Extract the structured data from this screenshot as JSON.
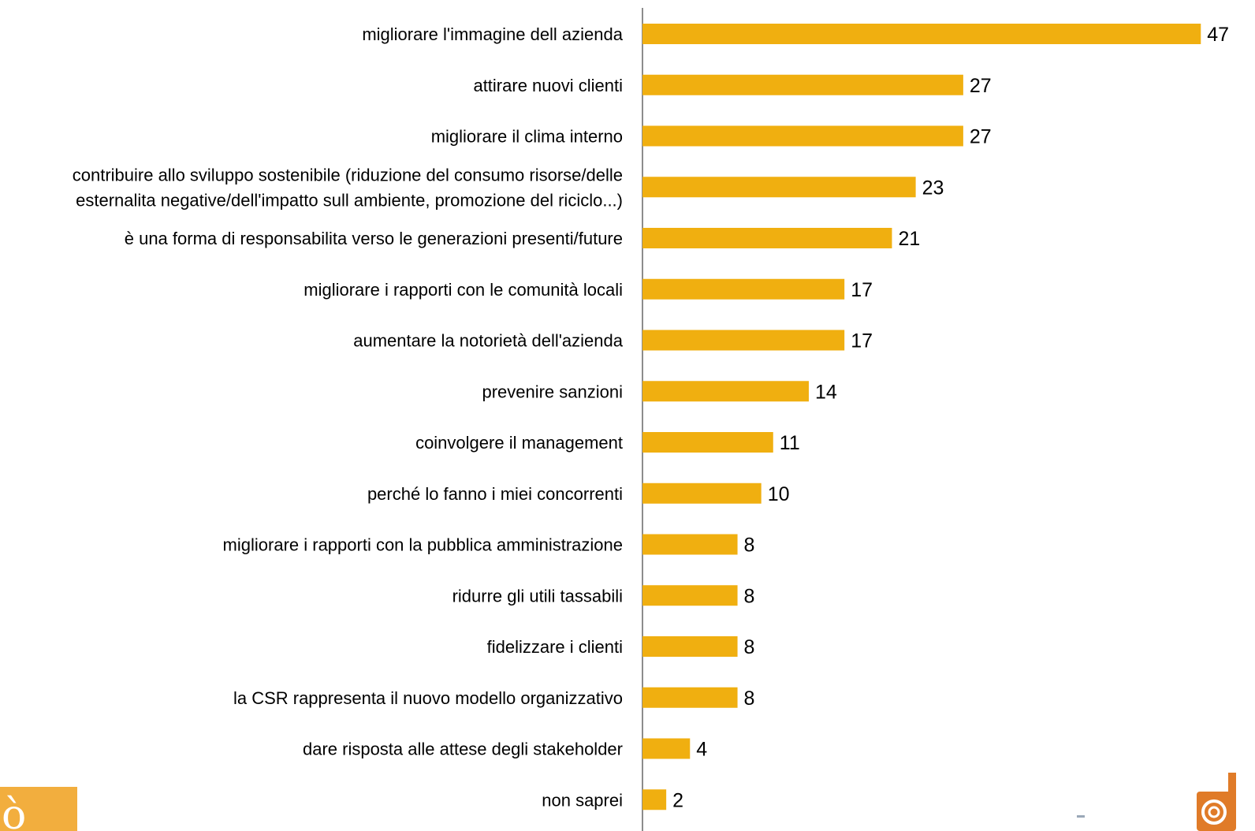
{
  "chart_data": {
    "type": "bar",
    "orientation": "horizontal",
    "categories": [
      [
        "migliorare l'immagine dell azienda"
      ],
      [
        "attirare nuovi clienti"
      ],
      [
        "migliorare il clima interno"
      ],
      [
        "contribuire allo sviluppo sostenibile (riduzione del consumo risorse/delle",
        "esternalita negative/dell'impatto sull ambiente, promozione del riciclo...)"
      ],
      [
        "è una forma di responsabilita verso le generazioni presenti/future"
      ],
      [
        "migliorare i rapporti con le comunità locali"
      ],
      [
        "aumentare la notorietà dell'azienda"
      ],
      [
        "prevenire sanzioni"
      ],
      [
        "coinvolgere il management"
      ],
      [
        "perché lo fanno i miei concorrenti"
      ],
      [
        "migliorare i rapporti con la pubblica amministrazione"
      ],
      [
        "ridurre gli utili tassabili"
      ],
      [
        "fidelizzare i clienti"
      ],
      [
        "la CSR rappresenta il nuovo modello organizzativo"
      ],
      [
        "dare risposta alle attese degli stakeholder"
      ],
      [
        "non saprei"
      ]
    ],
    "values": [
      47,
      27,
      27,
      23,
      21,
      17,
      17,
      14,
      11,
      10,
      8,
      8,
      8,
      8,
      4,
      2
    ],
    "xlim": [
      0,
      47
    ],
    "grid": false,
    "legend": "none",
    "bar_color": "#F0AF10",
    "axis_color": "#8C8C8C"
  },
  "colors": {
    "logo_left": "#F2AE3E",
    "logo_right": "#E07B28"
  },
  "logos": {
    "left_icon": "brand-logo-left",
    "right_icon": "brand-logo-right"
  }
}
